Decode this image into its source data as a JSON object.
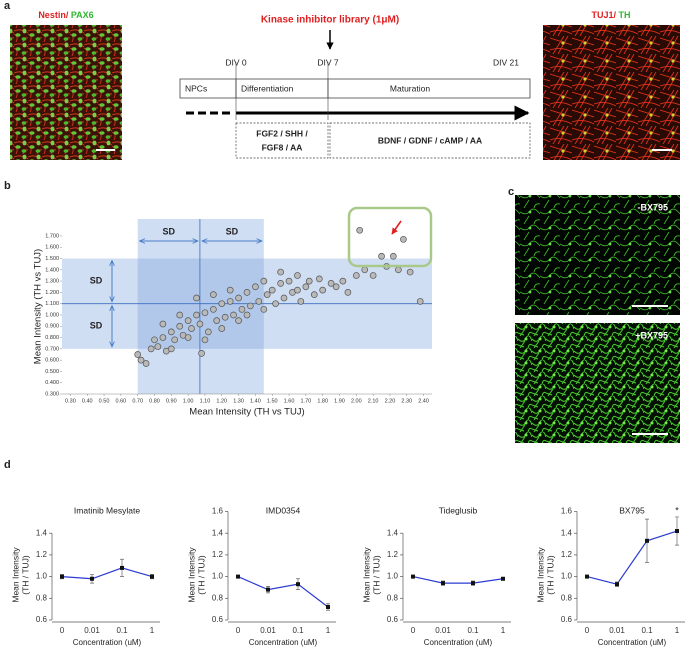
{
  "panel_labels": [
    "a",
    "b",
    "c",
    "d"
  ],
  "panel_a": {
    "left_image_label": [
      "Nestin/",
      "PAX6"
    ],
    "right_image_label": [
      "TUJ1/",
      "TH"
    ],
    "library": "Kinase inhibitor library (1μM)",
    "days": [
      "DIV 0",
      "DIV 7",
      "DIV 21"
    ],
    "stages": [
      "NPCs",
      "Differentiation",
      "Maturation"
    ],
    "factors": [
      [
        "FGF2 / SHH /",
        "FGF8 / AA"
      ],
      [
        "BDNF / GDNF / cAMP / AA"
      ]
    ]
  },
  "panel_c": {
    "image_labels": [
      "-BX795",
      "+BX795"
    ]
  },
  "chart_data": [
    {
      "type": "scatter",
      "xlabel": "Mean Intensity (TH vs TUJ)",
      "ylabel": "Mean Intensity (TH vs TUJ)",
      "annotations": [
        "SD",
        "SD",
        "SD",
        "SD"
      ],
      "color": "#b9b9b9",
      "bands": {
        "x": [
          0.7,
          1.45
        ],
        "y": [
          0.7,
          1.5
        ]
      },
      "mean": {
        "x": 1.07,
        "y": 1.1
      },
      "xlim": [
        0.25,
        2.45
      ],
      "ylim": [
        0.3,
        1.85
      ],
      "xticks": [
        {
          "value": 0.3,
          "label": "0.30"
        },
        {
          "value": 0.4,
          "label": "0.40"
        },
        {
          "value": 0.5,
          "label": "0.50"
        },
        {
          "value": 0.6,
          "label": "0.60"
        },
        {
          "value": 0.7,
          "label": "0.70"
        },
        {
          "value": 0.8,
          "label": "0.80"
        },
        {
          "value": 0.9,
          "label": "0.90"
        },
        {
          "value": 1.0,
          "label": "1.00"
        },
        {
          "value": 1.1,
          "label": "1.10"
        },
        {
          "value": 1.2,
          "label": "1.20"
        },
        {
          "value": 1.3,
          "label": "1.30"
        },
        {
          "value": 1.4,
          "label": "1.40"
        },
        {
          "value": 1.5,
          "label": "1.50"
        },
        {
          "value": 1.6,
          "label": "1.60"
        },
        {
          "value": 1.7,
          "label": "1.70"
        },
        {
          "value": 1.8,
          "label": "1.80"
        },
        {
          "value": 1.9,
          "label": "1.90"
        },
        {
          "value": 2.0,
          "label": "2.00"
        },
        {
          "value": 2.1,
          "label": "2.10"
        },
        {
          "value": 2.2,
          "label": "2.20"
        },
        {
          "value": 2.3,
          "label": "2.30"
        },
        {
          "value": 2.4,
          "label": "2.40"
        }
      ],
      "yticks": [
        {
          "value": 0.3,
          "label": "0.300"
        },
        {
          "value": 0.4,
          "label": "0.400"
        },
        {
          "value": 0.5,
          "label": "0.500"
        },
        {
          "value": 0.6,
          "label": "0.600"
        },
        {
          "value": 0.7,
          "label": "0.700"
        },
        {
          "value": 0.8,
          "label": "0.800"
        },
        {
          "value": 0.9,
          "label": "0.900"
        },
        {
          "value": 1.0,
          "label": "1.000"
        },
        {
          "value": 1.1,
          "label": "1.100"
        },
        {
          "value": 1.2,
          "label": "1.200"
        },
        {
          "value": 1.3,
          "label": "1.300"
        },
        {
          "value": 1.4,
          "label": "1.400"
        },
        {
          "value": 1.5,
          "label": "1.500"
        },
        {
          "value": 1.6,
          "label": "1.600"
        },
        {
          "value": 1.7,
          "label": "1.700"
        }
      ],
      "x": [
        0.7,
        0.72,
        0.75,
        0.78,
        0.8,
        0.82,
        0.85,
        0.87,
        0.9,
        0.92,
        0.95,
        0.97,
        1.0,
        1.02,
        1.05,
        1.07,
        1.08,
        1.1,
        1.12,
        1.15,
        1.17,
        1.2,
        1.22,
        1.25,
        1.27,
        1.3,
        1.32,
        1.35,
        1.37,
        1.4,
        1.42,
        1.45,
        1.47,
        1.5,
        1.52,
        1.55,
        1.57,
        1.6,
        1.62,
        1.65,
        1.67,
        1.7,
        1.72,
        1.75,
        1.78,
        1.8,
        1.85,
        1.88,
        1.92,
        1.95,
        2.0,
        2.02,
        2.05,
        2.1,
        2.15,
        2.18,
        2.22,
        2.25,
        2.28,
        2.32,
        2.38,
        0.95,
        1.0,
        1.05,
        1.1,
        1.15,
        1.2,
        1.25,
        1.3,
        1.35,
        0.85,
        0.9,
        1.45,
        1.55,
        1.65
      ],
      "values": [
        0.65,
        0.6,
        0.57,
        0.7,
        0.78,
        0.72,
        0.8,
        0.68,
        0.85,
        0.78,
        0.9,
        0.82,
        0.95,
        0.88,
        1.0,
        0.92,
        0.66,
        1.02,
        0.85,
        1.05,
        0.95,
        1.1,
        0.98,
        1.12,
        1.0,
        1.15,
        1.05,
        1.2,
        1.08,
        1.25,
        1.12,
        1.3,
        1.18,
        1.22,
        1.1,
        1.28,
        1.15,
        1.3,
        1.2,
        1.35,
        1.12,
        1.25,
        1.3,
        1.18,
        1.32,
        1.22,
        1.28,
        1.25,
        1.3,
        1.2,
        1.35,
        1.75,
        1.4,
        1.35,
        1.52,
        1.43,
        1.52,
        1.4,
        1.67,
        1.38,
        1.12,
        1.0,
        0.8,
        1.15,
        0.78,
        1.18,
        0.88,
        1.22,
        0.95,
        1.0,
        0.92,
        0.7,
        1.05,
        1.38,
        1.22
      ]
    },
    {
      "type": "line",
      "title": "Imatinib Mesylate",
      "ylabel": [
        "Mean Intensity",
        "(TH / TUJ)"
      ],
      "xlabel": "Concentration (uM)",
      "categories": [
        "0",
        "0.01",
        "0.1",
        "1"
      ],
      "values": [
        1.0,
        0.98,
        1.08,
        1.0
      ],
      "errors": [
        0.02,
        0.04,
        0.08,
        0.02
      ],
      "color": "#2b3bd1",
      "ylim": [
        0.6,
        1.4
      ],
      "yticks": [
        0.6,
        0.8,
        {
          "value": 1,
          "label": "1.0"
        },
        1.2,
        1.4
      ]
    },
    {
      "type": "line",
      "title": "IMD0354",
      "ylabel": [
        "Mean Intensity",
        "(TH / TUJ)"
      ],
      "xlabel": "Concentration (uM)",
      "categories": [
        "0",
        "0.01",
        "0.1",
        "1"
      ],
      "values": [
        1.0,
        0.88,
        0.93,
        0.72
      ],
      "errors": [
        0.01,
        0.03,
        0.05,
        0.03
      ],
      "color": "#2b3bd1",
      "ylim": [
        0.6,
        1.6
      ],
      "yticks": [
        0.6,
        0.8,
        {
          "value": 1,
          "label": "1.0"
        },
        1.2,
        1.4,
        1.6
      ]
    },
    {
      "type": "line",
      "title": "Tideglusib",
      "ylabel": [
        "Mean Intensity",
        "(TH / TUJ)"
      ],
      "xlabel": "Concentration (uM)",
      "categories": [
        "0",
        "0.01",
        "0.1",
        "1"
      ],
      "values": [
        1.0,
        0.94,
        0.94,
        0.98
      ],
      "errors": [
        0.01,
        0.02,
        0.02,
        0.01
      ],
      "color": "#2b3bd1",
      "ylim": [
        0.6,
        1.4
      ],
      "yticks": [
        0.6,
        0.8,
        {
          "value": 1,
          "label": "1.0"
        },
        1.2,
        1.4
      ]
    },
    {
      "type": "line",
      "title": "BX795",
      "ylabel": [
        "Mean Intensity",
        "(TH / TUJ)"
      ],
      "xlabel": "Concentration (uM)",
      "categories": [
        "0",
        "0.01",
        "0.1",
        "1"
      ],
      "values": [
        1.0,
        0.93,
        1.33,
        1.42
      ],
      "errors": [
        0.01,
        0.02,
        0.2,
        0.13
      ],
      "annotation": "*",
      "color": "#2b3bd1",
      "ylim": [
        0.6,
        1.6
      ],
      "yticks": [
        0.6,
        0.8,
        {
          "value": 1,
          "label": "1.0"
        },
        1.2,
        1.4,
        1.6
      ]
    }
  ]
}
